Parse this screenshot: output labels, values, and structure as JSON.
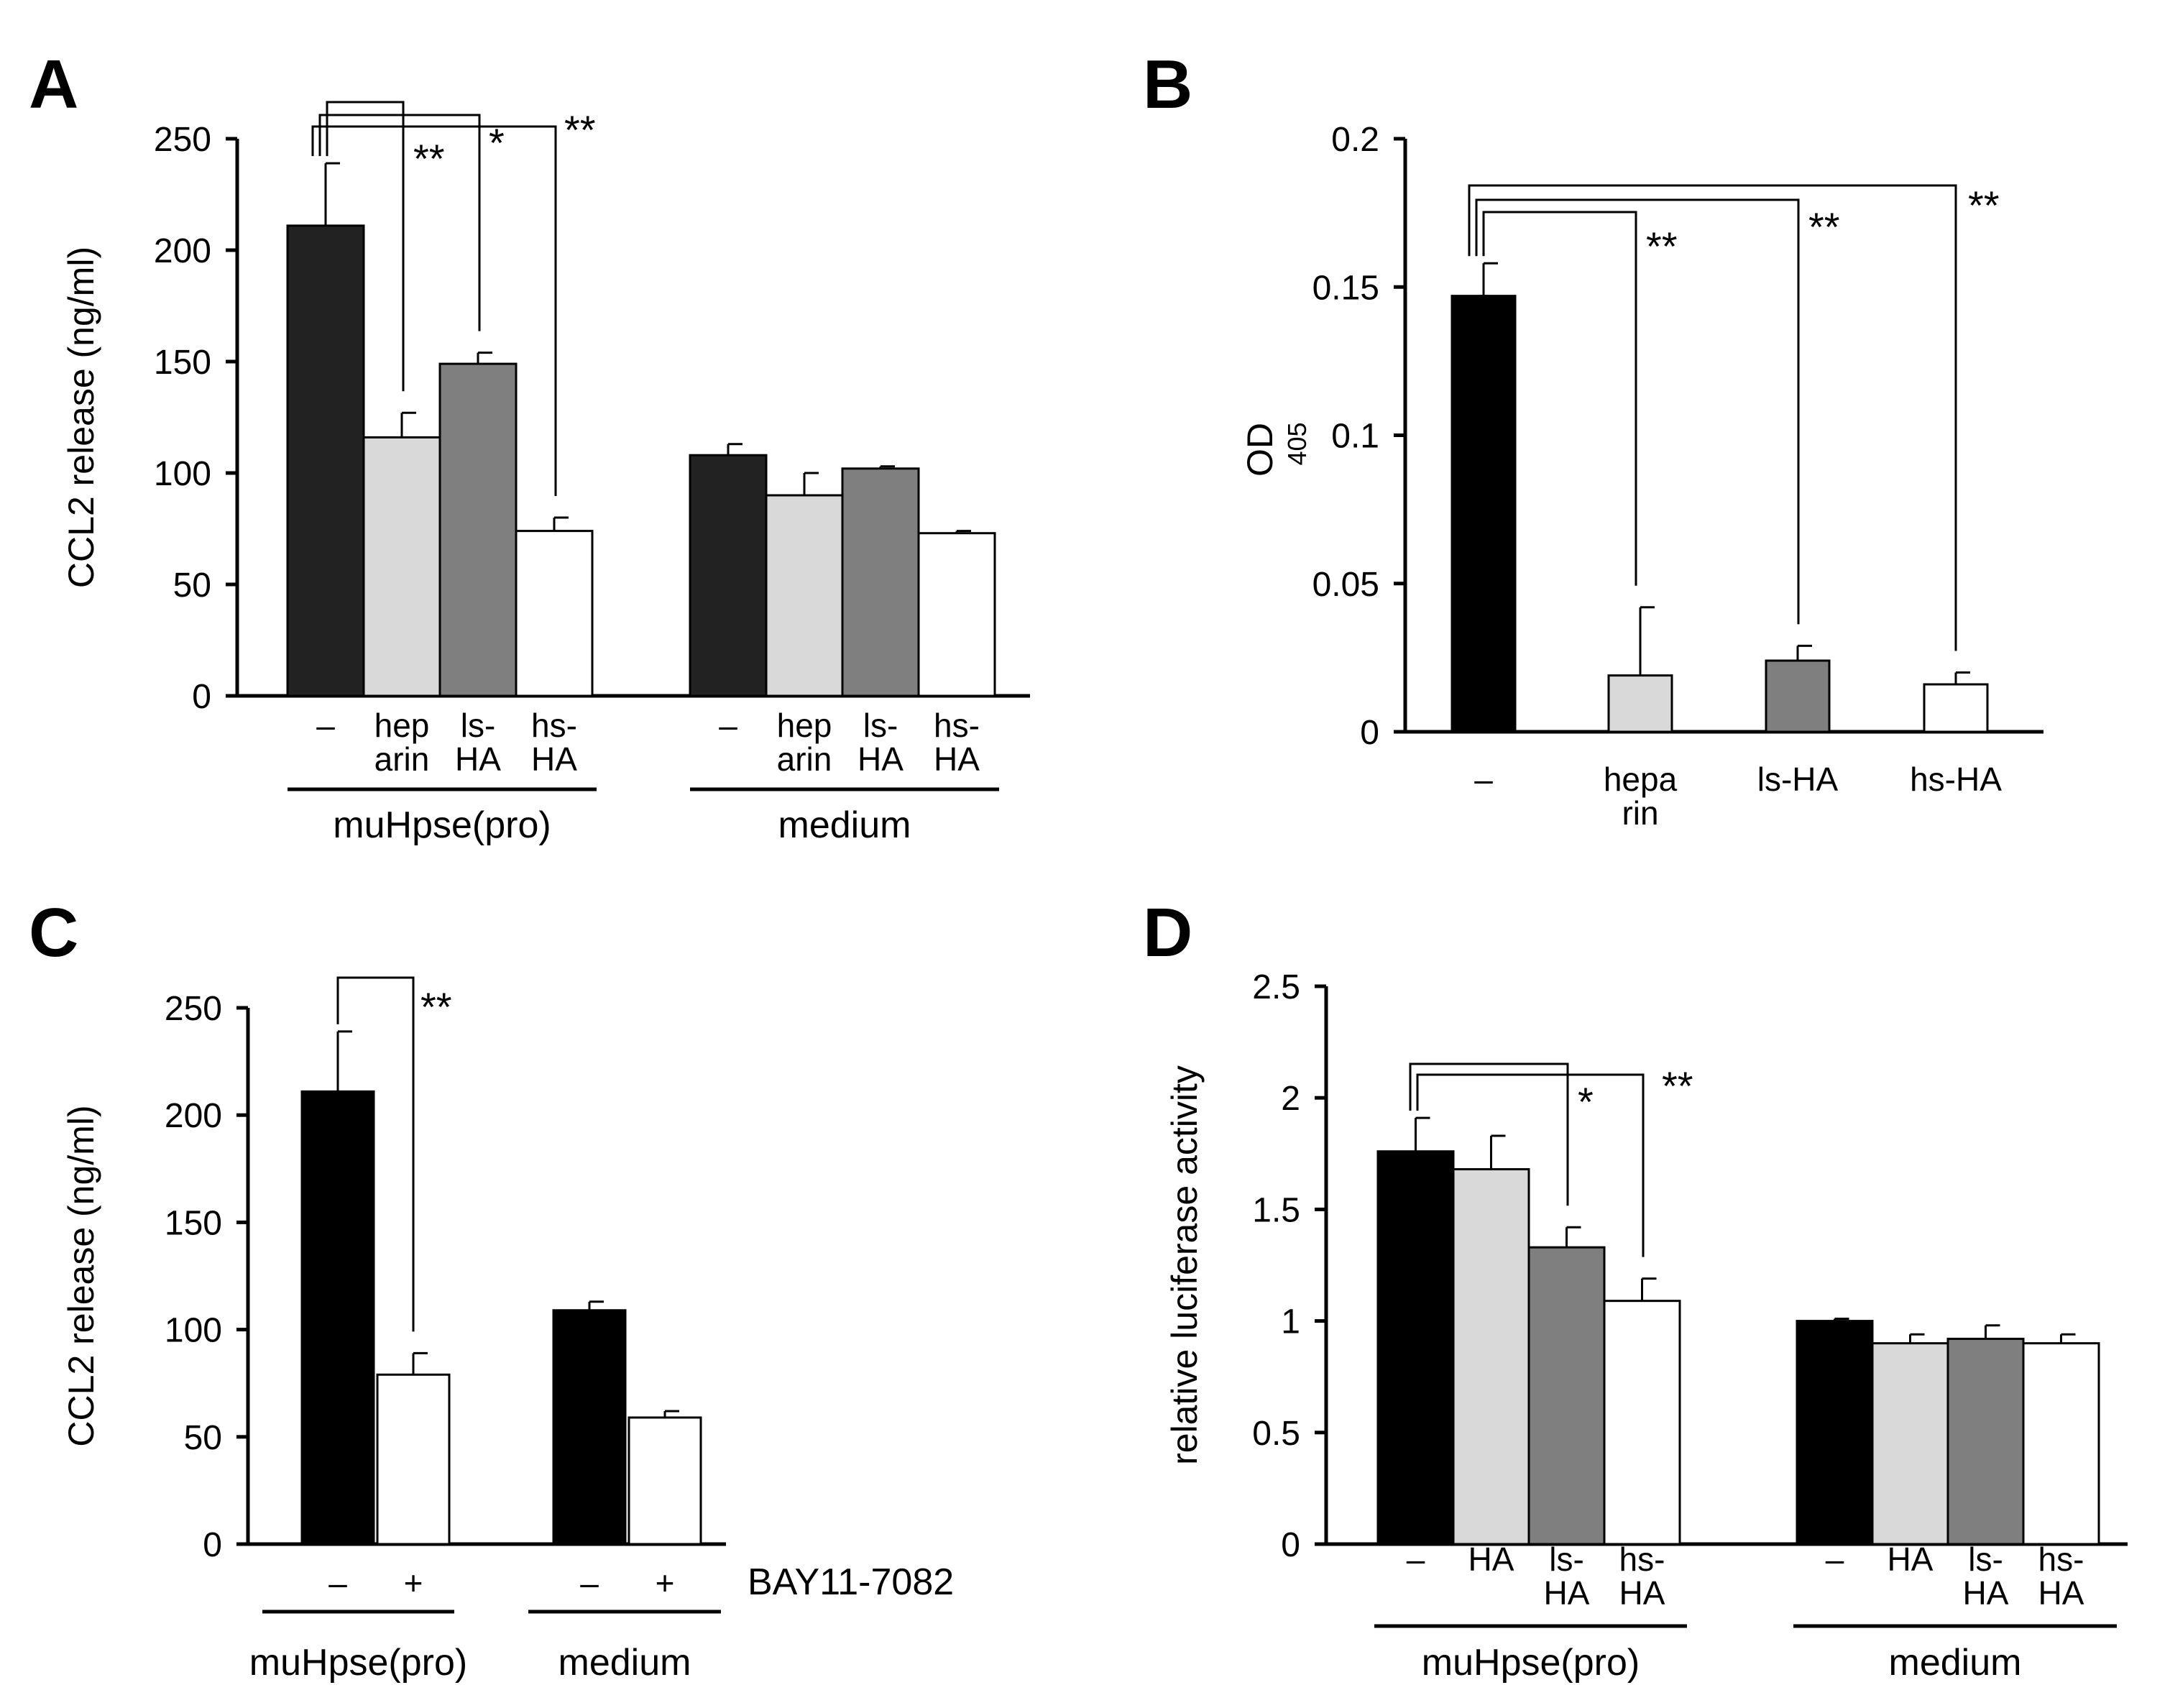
{
  "chart_data": [
    {
      "panel": "A",
      "type": "bar",
      "ylabel": "CCL2 release (ng/ml)",
      "ylim": [
        0,
        250
      ],
      "yticks": [
        "0",
        "50",
        "100",
        "150",
        "200",
        "250"
      ],
      "groups": [
        "muHpse(pro)",
        "medium"
      ],
      "categories": [
        [
          "–",
          "hep\narin",
          "ls-\nHA",
          "hs-\nHA"
        ],
        [
          "–",
          "hep\narin",
          "ls-\nHA",
          "hs-\nHA"
        ]
      ],
      "series_colors": [
        "#222222",
        "#d9d9d9",
        "#7f7f7f",
        "#ffffff"
      ],
      "values": [
        [
          211,
          116,
          149,
          74
        ],
        [
          108,
          90,
          102,
          73
        ]
      ],
      "errors": [
        [
          28,
          11,
          5,
          6
        ],
        [
          5,
          10,
          1,
          1
        ]
      ],
      "significance": [
        {
          "from": 0,
          "to": 1,
          "label": "**"
        },
        {
          "from": 0,
          "to": 2,
          "label": "*"
        },
        {
          "from": 0,
          "to": 3,
          "label": "**"
        }
      ]
    },
    {
      "panel": "B",
      "type": "bar",
      "ylabel": "OD",
      "ylabel_sub": "405",
      "ylim": [
        0,
        0.2
      ],
      "yticks": [
        "0",
        "0.05",
        "0.1",
        "0.15",
        "0.2"
      ],
      "categories": [
        "–",
        "hepa\nrin",
        "ls-HA",
        "hs-HA"
      ],
      "series_colors": [
        "#000000",
        "#d9d9d9",
        "#7f7f7f",
        "#ffffff"
      ],
      "values": [
        0.147,
        0.019,
        0.024,
        0.016
      ],
      "errors": [
        0.011,
        0.023,
        0.005,
        0.004
      ],
      "significance": [
        {
          "from": 0,
          "to": 1,
          "label": "**"
        },
        {
          "from": 0,
          "to": 2,
          "label": "**"
        },
        {
          "from": 0,
          "to": 3,
          "label": "**"
        }
      ]
    },
    {
      "panel": "C",
      "type": "bar",
      "ylabel": "CCL2 release (ng/ml)",
      "ylim": [
        0,
        250
      ],
      "yticks": [
        "0",
        "50",
        "100",
        "150",
        "200",
        "250"
      ],
      "groups": [
        "muHpse(pro)",
        "medium"
      ],
      "categories": [
        [
          "–",
          "+"
        ],
        [
          "–",
          "+"
        ]
      ],
      "treatment_label": "BAY11-7082",
      "series_colors": [
        "#000000",
        "#ffffff"
      ],
      "values": [
        [
          211,
          79
        ],
        [
          109,
          59
        ]
      ],
      "errors": [
        [
          28,
          10
        ],
        [
          4,
          3
        ]
      ],
      "significance": [
        {
          "from": 0,
          "to": 1,
          "label": "**"
        }
      ]
    },
    {
      "panel": "D",
      "type": "bar",
      "ylabel": "relative luciferase activity",
      "ylim": [
        0,
        2.5
      ],
      "yticks": [
        "0",
        "0.5",
        "1",
        "1.5",
        "2",
        "2.5"
      ],
      "groups": [
        "muHpse(pro)",
        "medium"
      ],
      "categories": [
        [
          "–",
          "HA",
          "ls-\nHA",
          "hs-\nHA"
        ],
        [
          "–",
          "HA",
          "ls-\nHA",
          "hs-\nHA"
        ]
      ],
      "series_colors": [
        "#000000",
        "#d9d9d9",
        "#7f7f7f",
        "#ffffff"
      ],
      "values": [
        [
          1.76,
          1.68,
          1.33,
          1.09
        ],
        [
          1.0,
          0.9,
          0.92,
          0.9
        ]
      ],
      "errors": [
        [
          0.15,
          0.15,
          0.09,
          0.1
        ],
        [
          0.01,
          0.04,
          0.06,
          0.04
        ]
      ],
      "significance": [
        {
          "from": 0,
          "to": 2,
          "label": "*"
        },
        {
          "from": 0,
          "to": 3,
          "label": "**"
        }
      ]
    }
  ]
}
